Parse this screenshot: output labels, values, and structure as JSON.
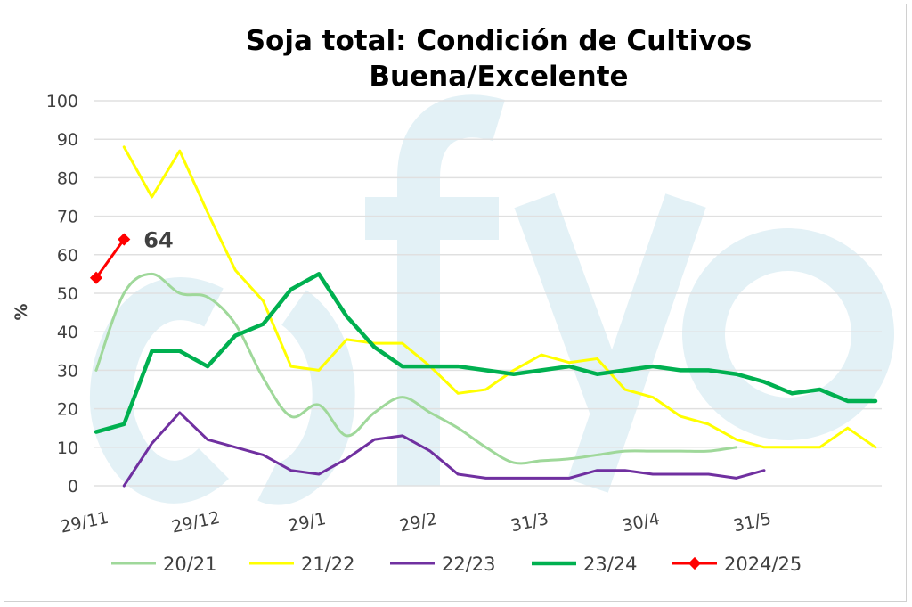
{
  "chart_data": {
    "type": "line",
    "title": [
      "Soja total: Condición de Cultivos",
      "Buena/Excelente"
    ],
    "xlabel": "",
    "ylabel": "%",
    "ylim": [
      0,
      100
    ],
    "yticks": [
      0,
      10,
      20,
      30,
      40,
      50,
      60,
      70,
      80,
      90,
      100
    ],
    "x_unit": "weeks since 29/11",
    "xticks": [
      {
        "label": "29/11",
        "x": 0
      },
      {
        "label": "29/12",
        "x": 4
      },
      {
        "label": "29/1",
        "x": 8
      },
      {
        "label": "29/2",
        "x": 12
      },
      {
        "label": "31/3",
        "x": 16
      },
      {
        "label": "30/4",
        "x": 20
      },
      {
        "label": "31/5",
        "x": 24
      }
    ],
    "xlim": [
      0,
      28
    ],
    "grid": true,
    "legend_position": "bottom",
    "series": [
      {
        "name": "20/21",
        "color": "#9fd89a",
        "smooth": true,
        "start": 0,
        "values": [
          30,
          50,
          55,
          50,
          49,
          42,
          28,
          18,
          21,
          13,
          19,
          23,
          19,
          15,
          10,
          6,
          6.5,
          7,
          8,
          9,
          9,
          9,
          9,
          10
        ]
      },
      {
        "name": "21/22",
        "color": "#ffff00",
        "start": 1,
        "values": [
          88,
          75,
          87,
          71,
          56,
          48,
          31,
          30,
          38,
          37,
          37,
          31,
          24,
          25,
          30,
          34,
          32,
          33,
          25,
          23,
          18,
          16,
          12,
          10,
          10,
          10,
          15,
          10
        ]
      },
      {
        "name": "22/23",
        "color": "#7030a0",
        "start": 1,
        "values": [
          0,
          11,
          19,
          12,
          10,
          8,
          4,
          3,
          7,
          12,
          13,
          9,
          3,
          2,
          2,
          2,
          2,
          4,
          4,
          3,
          3,
          3,
          2,
          4
        ]
      },
      {
        "name": "23/24",
        "color": "#00b050",
        "width": 4.5,
        "start": 0,
        "values": [
          14,
          16,
          35,
          35,
          31,
          39,
          42,
          51,
          55,
          44,
          36,
          31,
          31,
          31,
          30,
          29,
          30,
          31,
          29,
          30,
          31,
          30,
          30,
          29,
          27,
          24,
          25,
          22,
          22
        ]
      },
      {
        "name": "2024/25",
        "color": "#ff0000",
        "markers": true,
        "start": 0,
        "values": [
          54,
          64
        ],
        "data_label": "64"
      }
    ],
    "watermark": "fyo"
  }
}
